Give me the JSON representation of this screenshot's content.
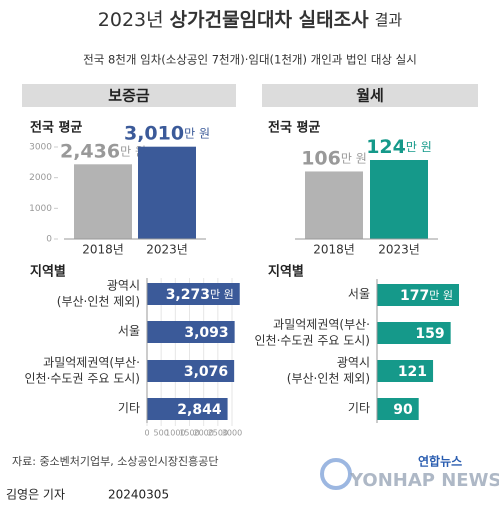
{
  "header": {
    "title": [
      "2023년",
      "상가건물임대차 실태조사",
      "결과"
    ],
    "subtitle": "전국 8천개 임차(소상공인 7천개)·임대(1천개) 개인과 법인 대상 실시"
  },
  "panels": [
    "보증금",
    "월세"
  ],
  "chart_data": [
    {
      "type": "bar",
      "title": "전국 평균",
      "categories": [
        "2018년",
        "2023년"
      ],
      "values": [
        2436,
        3010
      ],
      "value_labels": [
        "2,436",
        "3,010"
      ],
      "unit": "만 원",
      "colors": [
        "#b3b3b3",
        "#3b5a99"
      ],
      "ylim": [
        0,
        3000
      ],
      "yticks": [
        0,
        1000,
        2000,
        3000
      ]
    },
    {
      "type": "bar",
      "title": "전국 평균",
      "categories": [
        "2018년",
        "2023년"
      ],
      "values": [
        106,
        124
      ],
      "unit": "만 원",
      "colors": [
        "#b3b3b3",
        "#15998a"
      ]
    },
    {
      "type": "hbar",
      "title": "지역별",
      "categories": [
        "광역시\n(부산·인천 제외)",
        "서울",
        "과밀억제권역(부산·\n인천·수도권 주요 도시)",
        "기타"
      ],
      "values": [
        3273,
        3093,
        3076,
        2844
      ],
      "value_labels": [
        "3,273",
        "3,093",
        "3,076",
        "2,844"
      ],
      "unit": "만 원",
      "color": "#3b5a99",
      "xlim": [
        0,
        3000
      ],
      "xticks": [
        0,
        500,
        1000,
        1500,
        2000,
        2500,
        3000
      ]
    },
    {
      "type": "hbar",
      "title": "지역별",
      "categories": [
        "서울",
        "과밀억제권역(부산·\n인천·수도권 주요 도시)",
        "광역시\n(부산·인천 제외)",
        "기타"
      ],
      "values": [
        177,
        159,
        121,
        90
      ],
      "unit": "만 원",
      "color": "#15998a"
    }
  ],
  "footer": {
    "source": "자료: 중소벤처기업부, 소상공인시장진흥공단",
    "byline": "김영은 기자",
    "date": "20240305",
    "logo": "연합뉴스",
    "logo_en": "YONHAP NEWS"
  }
}
